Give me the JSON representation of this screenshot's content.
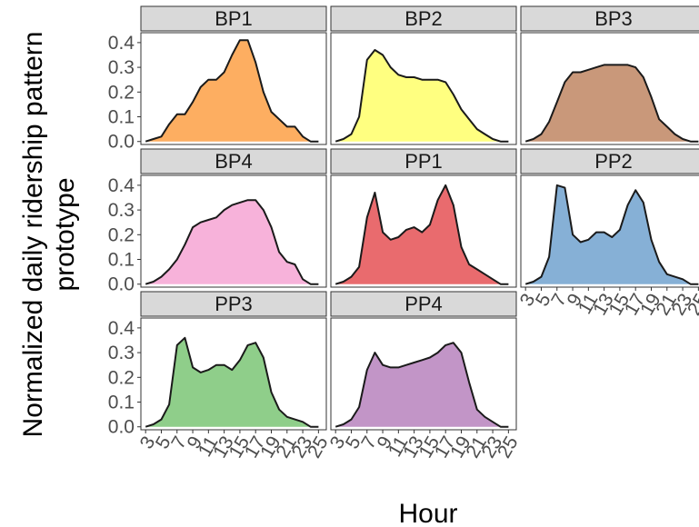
{
  "chart_data": {
    "type": "area",
    "xlabel": "Hour",
    "ylabel": "Normalized daily ridership pattern prototype",
    "ylabel_lines": [
      "Normalized daily ridership pattern",
      "prototype"
    ],
    "x": [
      3,
      4,
      5,
      6,
      7,
      8,
      9,
      10,
      11,
      12,
      13,
      14,
      15,
      16,
      17,
      18,
      19,
      20,
      21,
      22,
      23,
      24,
      25
    ],
    "x_ticks": [
      3,
      5,
      7,
      9,
      11,
      13,
      15,
      17,
      19,
      21,
      23,
      25
    ],
    "x_tick_labels": [
      "3",
      "5",
      "7",
      "9",
      "11",
      "13",
      "15",
      "17",
      "19",
      "21",
      "23",
      "25"
    ],
    "xlim": [
      2.4,
      26.0
    ],
    "ylim": [
      -0.012,
      0.44
    ],
    "y_ticks": [
      0.0,
      0.1,
      0.2,
      0.3,
      0.4
    ],
    "y_tick_labels": [
      "0.0",
      "0.1",
      "0.2",
      "0.3",
      "0.4"
    ],
    "grid": false,
    "facets": [
      {
        "name": "BP1",
        "color": "#FDAE61",
        "values": [
          0.0,
          0.01,
          0.02,
          0.07,
          0.11,
          0.11,
          0.16,
          0.22,
          0.25,
          0.25,
          0.28,
          0.35,
          0.41,
          0.41,
          0.32,
          0.2,
          0.12,
          0.09,
          0.06,
          0.06,
          0.02,
          0.0,
          0.0
        ]
      },
      {
        "name": "BP2",
        "color": "#FFFF80",
        "values": [
          0.0,
          0.01,
          0.03,
          0.1,
          0.33,
          0.37,
          0.35,
          0.3,
          0.27,
          0.26,
          0.26,
          0.25,
          0.25,
          0.25,
          0.24,
          0.19,
          0.13,
          0.09,
          0.05,
          0.03,
          0.01,
          0.0,
          0.0
        ]
      },
      {
        "name": "BP3",
        "color": "#C9987A",
        "values": [
          0.0,
          0.01,
          0.03,
          0.08,
          0.16,
          0.24,
          0.28,
          0.28,
          0.29,
          0.3,
          0.31,
          0.31,
          0.31,
          0.31,
          0.3,
          0.26,
          0.18,
          0.09,
          0.06,
          0.03,
          0.01,
          0.0,
          0.0
        ]
      },
      {
        "name": "BP4",
        "color": "#F7B2DA",
        "values": [
          0.0,
          0.01,
          0.03,
          0.06,
          0.1,
          0.16,
          0.23,
          0.25,
          0.26,
          0.27,
          0.3,
          0.32,
          0.33,
          0.34,
          0.34,
          0.3,
          0.23,
          0.13,
          0.09,
          0.08,
          0.02,
          0.0,
          0.0
        ]
      },
      {
        "name": "PP1",
        "color": "#E96B6E",
        "values": [
          0.0,
          0.01,
          0.03,
          0.07,
          0.27,
          0.37,
          0.21,
          0.18,
          0.19,
          0.22,
          0.23,
          0.21,
          0.24,
          0.34,
          0.4,
          0.32,
          0.15,
          0.08,
          0.06,
          0.04,
          0.02,
          0.0,
          0.0
        ]
      },
      {
        "name": "PP2",
        "color": "#86B0D6",
        "values": [
          0.0,
          0.01,
          0.03,
          0.11,
          0.4,
          0.39,
          0.2,
          0.17,
          0.18,
          0.21,
          0.21,
          0.19,
          0.22,
          0.32,
          0.38,
          0.33,
          0.18,
          0.09,
          0.04,
          0.03,
          0.02,
          0.0,
          0.0
        ]
      },
      {
        "name": "PP3",
        "color": "#8FCE8A",
        "values": [
          0.0,
          0.01,
          0.03,
          0.09,
          0.33,
          0.36,
          0.24,
          0.22,
          0.23,
          0.25,
          0.25,
          0.23,
          0.27,
          0.33,
          0.34,
          0.28,
          0.14,
          0.07,
          0.04,
          0.03,
          0.02,
          0.0,
          0.0
        ]
      },
      {
        "name": "PP4",
        "color": "#C295C7",
        "values": [
          0.0,
          0.01,
          0.03,
          0.08,
          0.23,
          0.3,
          0.25,
          0.24,
          0.24,
          0.25,
          0.26,
          0.27,
          0.28,
          0.3,
          0.33,
          0.34,
          0.3,
          0.18,
          0.07,
          0.04,
          0.02,
          0.0,
          0.0
        ]
      }
    ]
  }
}
